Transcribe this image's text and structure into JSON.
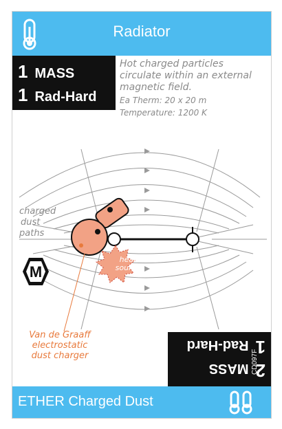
{
  "card": {
    "title": "Radiator",
    "icons": {
      "header": "thermometer-icon",
      "footer": "twin-thermometer-icon",
      "badge": "m-hexagon-icon"
    },
    "colors": {
      "header_bar": "#4dbbef",
      "stat_box": "#111111",
      "charger": "#f2a285",
      "accent_text": "#e87a3c",
      "heat_source": "#f2a285"
    },
    "stats": [
      {
        "value": "1",
        "label": "MASS"
      },
      {
        "value": "1",
        "label": "Rad-Hard"
      }
    ],
    "description": "Hot charged particles circulate within an external magnetic field.",
    "specs": [
      "Ea Therm: 20 x 20 m",
      "Temperature: 1200 K"
    ],
    "diagram": {
      "charged_dust_label": [
        "charged",
        "dust",
        "paths"
      ],
      "heat_source_label": [
        "heat",
        "source"
      ],
      "charger_label": [
        "Van de Graaff",
        "electrostatic",
        "dust charger"
      ],
      "positive_pole": "+",
      "negative_pole": "−",
      "badge_letter": "M"
    },
    "flip_stats": [
      {
        "value": "2",
        "label": "MASS"
      },
      {
        "value": "1",
        "label": "Rad-Hard"
      }
    ],
    "name": "ETHER Charged Dust",
    "code": "CD097F"
  }
}
